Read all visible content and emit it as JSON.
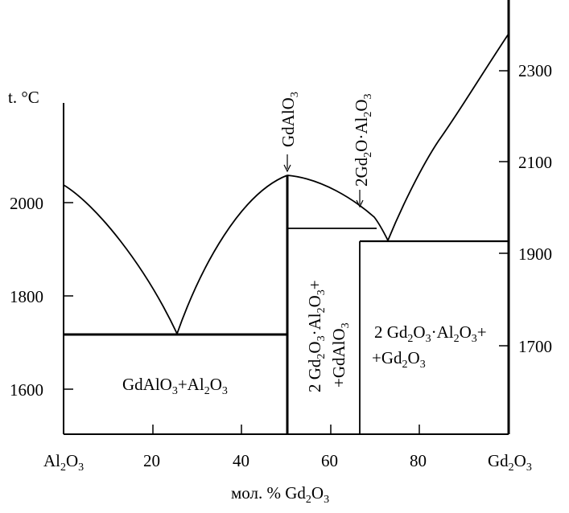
{
  "left_axis": {
    "unit_label": "t. °C",
    "ticks": [
      "2000",
      "1800",
      "1600"
    ]
  },
  "right_axis": {
    "ticks": [
      "2300",
      "2100",
      "1900",
      "1700"
    ]
  },
  "x_axis": {
    "ticks": [
      "20",
      "40",
      "60",
      "80"
    ],
    "left_end": {
      "main": "Al",
      "sub1": "2",
      "mid": "O",
      "sub2": "3"
    },
    "right_end": {
      "main": "Gd",
      "sub1": "2",
      "mid": "O",
      "sub2": "3"
    },
    "title_prefix": "мол. % Gd",
    "title_sub1": "2",
    "title_mid": "O",
    "title_sub2": "3"
  },
  "compounds": {
    "gdalo3": {
      "text": "GdAlO",
      "sub": "3"
    },
    "gd2o_al2o3": {
      "p1": "2Gd",
      "s1": "2",
      "p2": "O·Al",
      "s2": "2",
      "p3": "O",
      "s3": "3"
    }
  },
  "regions": {
    "left": {
      "p1": "GdAlO",
      "s1": "3",
      "p2": "+Al",
      "s2": "2",
      "p3": "O",
      "s3": "3"
    },
    "middle_line1": {
      "p1": "2 Gd",
      "s1": "2",
      "p2": "O",
      "s2": "3",
      "p3": "·Al",
      "s3": "2",
      "p4": "O",
      "s4": "3",
      "p5": "+"
    },
    "middle_line2": {
      "p1": "+GdAlO",
      "s1": "3"
    },
    "right_line1": {
      "p1": "2 Gd",
      "s1": "2",
      "p2": "O",
      "s2": "3",
      "p3": "·Al",
      "s3": "2",
      "p4": "O",
      "s4": "3",
      "p5": "+"
    },
    "right_line2": {
      "p1": "+Gd",
      "s1": "2",
      "p2": "O",
      "s2": "3"
    }
  }
}
